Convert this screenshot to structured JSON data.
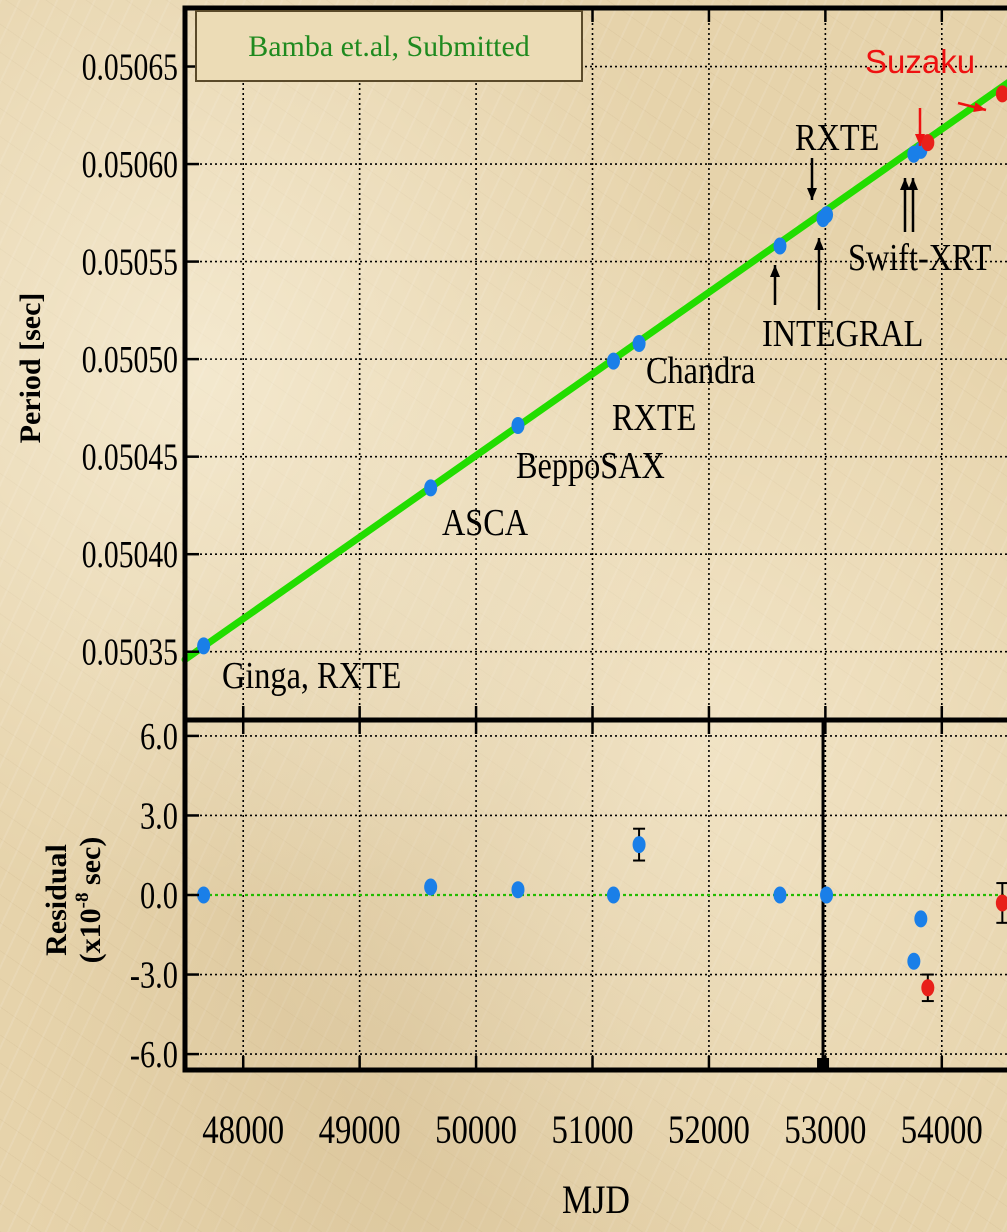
{
  "chart_data": [
    {
      "type": "scatter",
      "panel": "period",
      "ylabel": "Period [sec]",
      "ylim": [
        0.050315,
        0.05068
      ],
      "yticks": [
        "0.05035",
        "0.05040",
        "0.05045",
        "0.05050",
        "0.05055",
        "0.05060",
        "0.05065"
      ],
      "ytick_values": [
        0.05035,
        0.0504,
        0.05045,
        0.0505,
        0.05055,
        0.0506,
        0.05065
      ],
      "xlim": [
        47500,
        54560
      ],
      "grid": true,
      "fit_line": {
        "x": [
          47500,
          54600
        ],
        "y": [
          0.050346,
          0.050643
        ],
        "color": "#22dd00"
      },
      "series": [
        {
          "color": "#1a7fe8",
          "points": [
            {
              "x": 47660,
              "y": 0.050353
            },
            {
              "x": 49610,
              "y": 0.050434
            },
            {
              "x": 50360,
              "y": 0.050466
            },
            {
              "x": 51180,
              "y": 0.050499
            },
            {
              "x": 51400,
              "y": 0.050508
            },
            {
              "x": 52610,
              "y": 0.050558
            },
            {
              "x": 52980,
              "y": 0.050572
            },
            {
              "x": 53010,
              "y": 0.050574
            },
            {
              "x": 53760,
              "y": 0.050605
            },
            {
              "x": 53820,
              "y": 0.050607
            }
          ]
        },
        {
          "color": "#e8201a",
          "points": [
            {
              "x": 53880,
              "y": 0.050611
            },
            {
              "x": 54520,
              "y": 0.050636
            }
          ]
        }
      ],
      "annotations": [
        {
          "id": "ginga",
          "text": "Ginga, RXTE",
          "color": "#000000"
        },
        {
          "id": "asca",
          "text": "ASCA",
          "color": "#000000"
        },
        {
          "id": "beppo",
          "text": "BeppoSAX",
          "color": "#000000"
        },
        {
          "id": "rxte1",
          "text": "RXTE",
          "color": "#000000"
        },
        {
          "id": "chandra",
          "text": "Chandra",
          "color": "#000000"
        },
        {
          "id": "integral",
          "text": "INTEGRAL",
          "color": "#000000"
        },
        {
          "id": "rxte2",
          "text": "RXTE",
          "color": "#000000"
        },
        {
          "id": "swift",
          "text": "Swift-XRT",
          "color": "#000000"
        },
        {
          "id": "suzaku",
          "text": "Suzaku",
          "color": "#ee1111"
        }
      ]
    },
    {
      "type": "scatter",
      "panel": "residual",
      "ylabel": "Residual",
      "ylabel2_prefix": "(x10",
      "ylabel2_exp": "-8",
      "ylabel2_suffix": " sec)",
      "ylim": [
        -6.6,
        6.6
      ],
      "yticks": [
        "-6.0",
        "-3.0",
        "0.0",
        "3.0",
        "6.0"
      ],
      "ytick_values": [
        -6,
        -3,
        0,
        3,
        6
      ],
      "xlabel": "MJD",
      "xlim": [
        47500,
        54560
      ],
      "xticks": [
        "48000",
        "49000",
        "50000",
        "51000",
        "52000",
        "53000",
        "54000"
      ],
      "xtick_values": [
        48000,
        49000,
        50000,
        51000,
        52000,
        53000,
        54000
      ],
      "zero_line_color": "#22bb00",
      "vertical_marker_x": 52980,
      "series": [
        {
          "color": "#1a7fe8",
          "points": [
            {
              "x": 47660,
              "y": 0.0,
              "err": 0
            },
            {
              "x": 49610,
              "y": 0.3,
              "err": 0
            },
            {
              "x": 50360,
              "y": 0.2,
              "err": 0
            },
            {
              "x": 51180,
              "y": 0.0,
              "err": 0
            },
            {
              "x": 51400,
              "y": 1.9,
              "err": 0.6
            },
            {
              "x": 52610,
              "y": 0.0,
              "err": 0
            },
            {
              "x": 53010,
              "y": 0.0,
              "err": 0
            },
            {
              "x": 53760,
              "y": -2.5,
              "err": 0
            },
            {
              "x": 53820,
              "y": -0.9,
              "err": 0
            }
          ]
        },
        {
          "color": "#e8201a",
          "points": [
            {
              "x": 53880,
              "y": -3.5,
              "err": 0.5
            },
            {
              "x": 54520,
              "y": -0.3,
              "err": 0.75
            }
          ]
        }
      ]
    }
  ],
  "credit_box": {
    "text": "Bamba et.al, Submitted",
    "color": "#1f8a1f"
  }
}
